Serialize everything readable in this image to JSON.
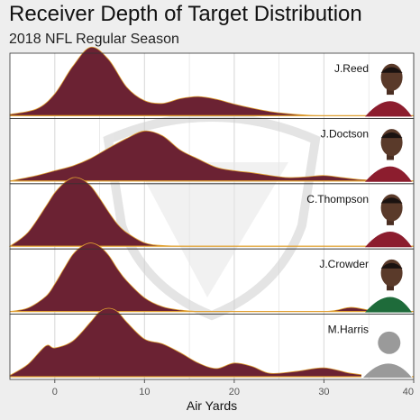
{
  "chart_data": {
    "type": "ridgeline",
    "title": "Receiver Depth of Target Distribution",
    "subtitle": "2018 NFL Regular Season",
    "xlabel": "Air Yards",
    "xlim": [
      -5,
      40
    ],
    "xticks": [
      0,
      10,
      20,
      30,
      40
    ],
    "grid": true,
    "colors": {
      "fill": "#6b2233",
      "outline": "#e0a030",
      "panel_bg": "#ffffff",
      "panel_border": "#333333",
      "grid": "#dddddd",
      "page_bg": "#eeeeee"
    },
    "series": [
      {
        "name": "J.Reed",
        "photo_icon": "player-photo-burgundy-jersey",
        "x": [
          -5,
          -2,
          0,
          2,
          4,
          6,
          8,
          10,
          12,
          14,
          16,
          18,
          20,
          22,
          24,
          26,
          28,
          30,
          35,
          40
        ],
        "density": [
          0.02,
          0.1,
          0.32,
          0.72,
          1.0,
          0.82,
          0.42,
          0.22,
          0.18,
          0.25,
          0.28,
          0.24,
          0.17,
          0.11,
          0.06,
          0.03,
          0.01,
          0.0,
          0.0,
          0.0
        ]
      },
      {
        "name": "J.Doctson",
        "photo_icon": "player-photo-burgundy-jersey",
        "x": [
          -5,
          -2,
          0,
          2,
          4,
          6,
          8,
          10,
          12,
          14,
          16,
          18,
          20,
          22,
          24,
          26,
          28,
          30,
          32,
          34,
          36,
          38,
          40
        ],
        "density": [
          0.0,
          0.08,
          0.15,
          0.22,
          0.33,
          0.48,
          0.62,
          0.73,
          0.66,
          0.45,
          0.32,
          0.2,
          0.15,
          0.12,
          0.08,
          0.05,
          0.06,
          0.08,
          0.05,
          0.02,
          0.01,
          0.0,
          0.0
        ]
      },
      {
        "name": "C.Thompson",
        "photo_icon": "player-photo-burgundy-jersey",
        "x": [
          -5,
          -3,
          -1,
          0,
          1,
          2,
          3,
          4,
          5,
          6,
          7,
          8,
          10,
          12,
          15,
          20,
          40
        ],
        "density": [
          0.0,
          0.2,
          0.58,
          0.78,
          0.92,
          1.0,
          0.98,
          0.88,
          0.7,
          0.5,
          0.32,
          0.2,
          0.05,
          0.01,
          0.0,
          0.0,
          0.0
        ]
      },
      {
        "name": "J.Crowder",
        "photo_icon": "player-photo-green-jersey",
        "x": [
          -5,
          -3,
          -1,
          0,
          1,
          2,
          3,
          4,
          5,
          6,
          7,
          8,
          10,
          12,
          14,
          16,
          20,
          30,
          33,
          36,
          40
        ],
        "density": [
          0.0,
          0.05,
          0.22,
          0.4,
          0.62,
          0.83,
          0.95,
          1.0,
          0.95,
          0.82,
          0.62,
          0.45,
          0.2,
          0.07,
          0.02,
          0.0,
          0.0,
          0.0,
          0.06,
          0.0,
          0.0
        ]
      },
      {
        "name": "M.Harris",
        "photo_icon": "player-silhouette",
        "x": [
          -5,
          -3,
          -1,
          0,
          2,
          4,
          5,
          6,
          7,
          8,
          10,
          12,
          14,
          16,
          18,
          20,
          22,
          24,
          27,
          30,
          33,
          36,
          40
        ],
        "density": [
          0.02,
          0.18,
          0.45,
          0.42,
          0.52,
          0.8,
          0.95,
          1.0,
          0.95,
          0.8,
          0.55,
          0.48,
          0.35,
          0.2,
          0.12,
          0.2,
          0.15,
          0.05,
          0.08,
          0.13,
          0.05,
          0.01,
          0.0
        ]
      }
    ]
  }
}
